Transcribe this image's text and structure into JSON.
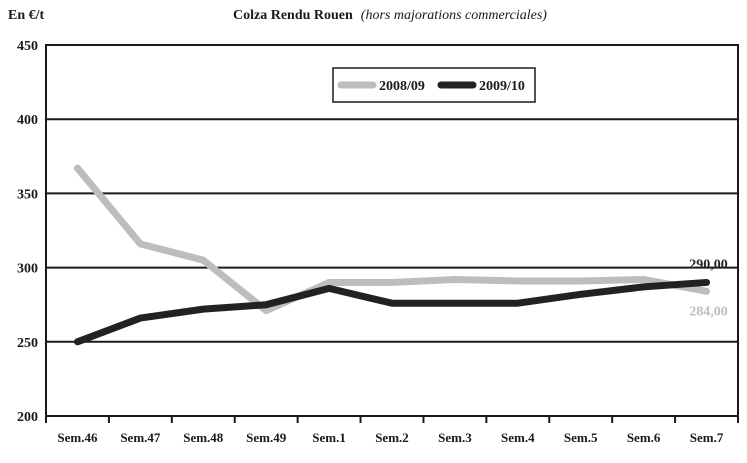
{
  "unit_label": "En €/t",
  "chart_data": {
    "type": "line",
    "title": "Colza Rendu Rouen",
    "subtitle": "(hors majorations commerciales)",
    "categories": [
      "Sem.46",
      "Sem.47",
      "Sem.48",
      "Sem.49",
      "Sem.1",
      "Sem.2",
      "Sem.3",
      "Sem.4",
      "Sem.5",
      "Sem.6",
      "Sem.7"
    ],
    "ylim": [
      200,
      450
    ],
    "yticks": [
      "200",
      "250",
      "300",
      "350",
      "400",
      "450"
    ],
    "grid": true,
    "legend_position": "top-center",
    "series": [
      {
        "name": "2008/09",
        "color": "#bdbdbd",
        "values": [
          367,
          316,
          305,
          271,
          290,
          290,
          292,
          291,
          291,
          292,
          284
        ]
      },
      {
        "name": "2009/10",
        "color": "#222222",
        "values": [
          250,
          266,
          272,
          275,
          286,
          276,
          276,
          276,
          282,
          287,
          290
        ]
      }
    ],
    "annotations": [
      {
        "text": "290,00",
        "series": 1,
        "color": "#222222"
      },
      {
        "text": "284,00",
        "series": 0,
        "color": "#bdbdbd"
      }
    ]
  }
}
